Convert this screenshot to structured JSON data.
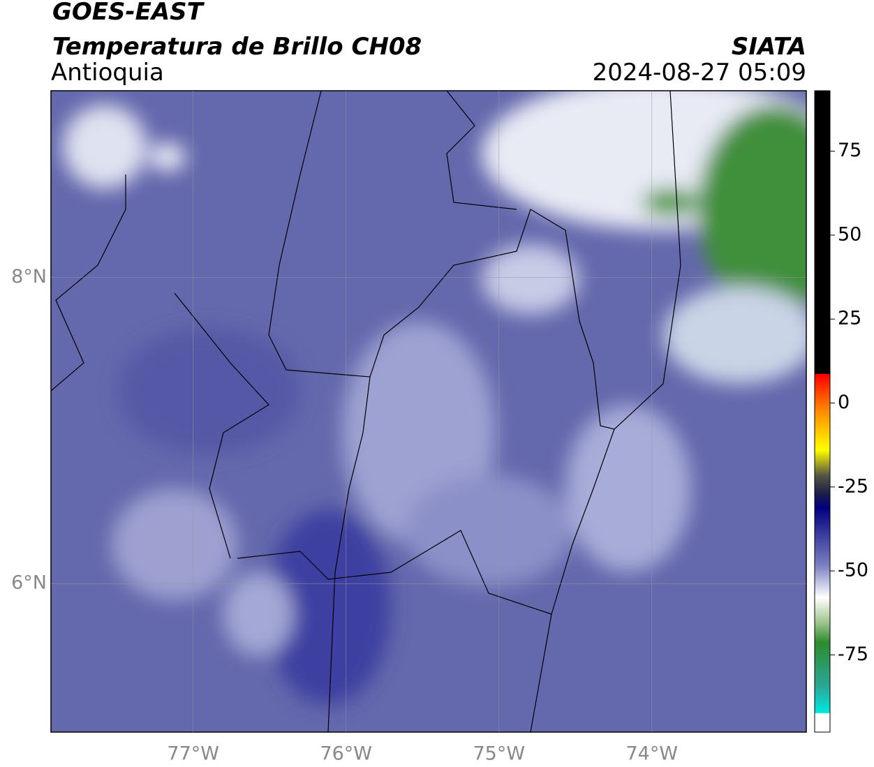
{
  "header": {
    "satellite": "GOES-EAST",
    "product": "Temperatura de Brillo CH08",
    "region": "Antioquia",
    "source": "SIATA",
    "datetime": "2024-08-27 05:09"
  },
  "map": {
    "xlim": [
      -77.93,
      -72.99
    ],
    "ylim": [
      5.03,
      9.22
    ],
    "lon_ticks": [
      {
        "value": -77,
        "label": "77°W"
      },
      {
        "value": -76,
        "label": "76°W"
      },
      {
        "value": -75,
        "label": "75°W"
      },
      {
        "value": -74,
        "label": "74°W"
      }
    ],
    "lat_ticks": [
      {
        "value": 8,
        "label": "8°N"
      },
      {
        "value": 6,
        "label": "6°N"
      }
    ],
    "grid": true
  },
  "colorbar": {
    "lim": [
      -98,
      93
    ],
    "ticks": [
      75,
      50,
      25,
      0,
      -25,
      -50,
      -75
    ]
  }
}
